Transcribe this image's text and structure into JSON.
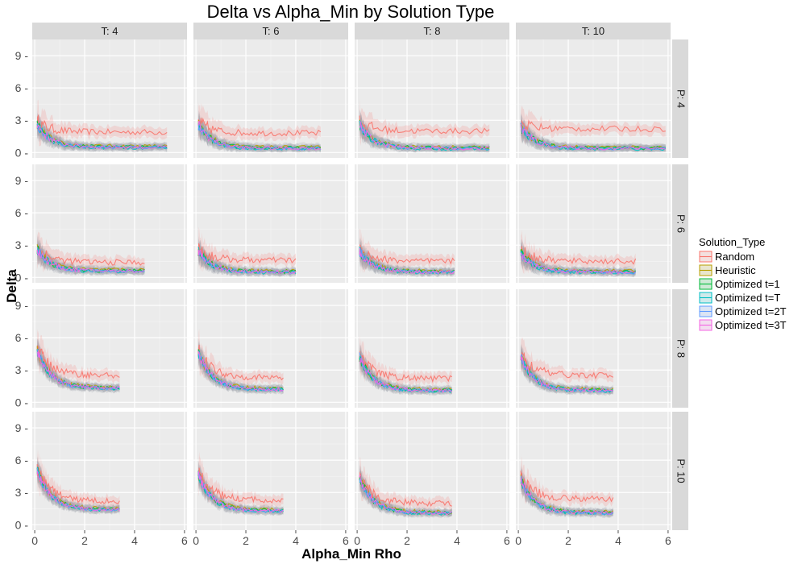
{
  "chart_data": {
    "type": "line",
    "title": "Delta vs Alpha_Min by Solution Type",
    "xlabel": "Alpha_Min Rho",
    "ylabel": "Delta",
    "xlim": [
      -0.1,
      6.1
    ],
    "ylim": [
      -0.5,
      10.5
    ],
    "x_ticks": [
      0,
      2,
      4,
      6
    ],
    "y_ticks": [
      0,
      3,
      6,
      9
    ],
    "x_tick_labels": [
      "0",
      "2",
      "4",
      "6"
    ],
    "y_tick_labels": [
      "0 -",
      "3 -",
      "6 -",
      "9 -"
    ],
    "grid": true,
    "legend_position": "right",
    "facet_cols": [
      "T: 4",
      "T: 6",
      "T: 8",
      "T: 10"
    ],
    "facet_rows": [
      "P: 4",
      "P: 6",
      "P: 8",
      "P: 10"
    ],
    "legend": {
      "title": "Solution_Type",
      "entries": [
        {
          "name": "Random",
          "color": "#F8766D"
        },
        {
          "name": "Heuristic",
          "color": "#B79F00"
        },
        {
          "name": "Optimized t=1",
          "color": "#00BA38"
        },
        {
          "name": "Optimized t=T",
          "color": "#00BFC4"
        },
        {
          "name": "Optimized t=2T",
          "color": "#619CFF"
        },
        {
          "name": "Optimized t=3T",
          "color": "#F564E3"
        }
      ]
    },
    "series_note": "Approximate trend per facet: x from 0.1 to xmax; Random highest, optimized lowest.",
    "panels": [
      {
        "row": 0,
        "col": 0,
        "xmax": 5.3,
        "start": 3.0,
        "end_random": 1.9,
        "end_low": 0.4
      },
      {
        "row": 0,
        "col": 1,
        "xmax": 5.0,
        "start": 3.0,
        "end_random": 1.8,
        "end_low": 0.3
      },
      {
        "row": 0,
        "col": 2,
        "xmax": 5.3,
        "start": 3.0,
        "end_random": 2.0,
        "end_low": 0.3
      },
      {
        "row": 0,
        "col": 3,
        "xmax": 5.9,
        "start": 2.8,
        "end_random": 2.2,
        "end_low": 0.3
      },
      {
        "row": 1,
        "col": 0,
        "xmax": 4.4,
        "start": 3.0,
        "end_random": 1.4,
        "end_low": 0.5
      },
      {
        "row": 1,
        "col": 1,
        "xmax": 4.0,
        "start": 2.8,
        "end_random": 1.6,
        "end_low": 0.4
      },
      {
        "row": 1,
        "col": 2,
        "xmax": 3.9,
        "start": 2.8,
        "end_random": 1.5,
        "end_low": 0.4
      },
      {
        "row": 1,
        "col": 3,
        "xmax": 4.7,
        "start": 2.6,
        "end_random": 1.5,
        "end_low": 0.4
      },
      {
        "row": 2,
        "col": 0,
        "xmax": 3.4,
        "start": 5.5,
        "end_random": 2.5,
        "end_low": 1.2
      },
      {
        "row": 2,
        "col": 1,
        "xmax": 3.5,
        "start": 5.3,
        "end_random": 2.3,
        "end_low": 1.1
      },
      {
        "row": 2,
        "col": 2,
        "xmax": 3.8,
        "start": 4.8,
        "end_random": 2.2,
        "end_low": 1.0
      },
      {
        "row": 2,
        "col": 3,
        "xmax": 3.8,
        "start": 4.8,
        "end_random": 2.5,
        "end_low": 1.0
      },
      {
        "row": 3,
        "col": 0,
        "xmax": 3.4,
        "start": 5.8,
        "end_random": 2.2,
        "end_low": 1.3
      },
      {
        "row": 3,
        "col": 1,
        "xmax": 3.5,
        "start": 5.3,
        "end_random": 2.3,
        "end_low": 1.2
      },
      {
        "row": 3,
        "col": 2,
        "xmax": 3.8,
        "start": 5.0,
        "end_random": 2.0,
        "end_low": 1.0
      },
      {
        "row": 3,
        "col": 3,
        "xmax": 3.8,
        "start": 4.8,
        "end_random": 2.4,
        "end_low": 1.0
      }
    ]
  }
}
